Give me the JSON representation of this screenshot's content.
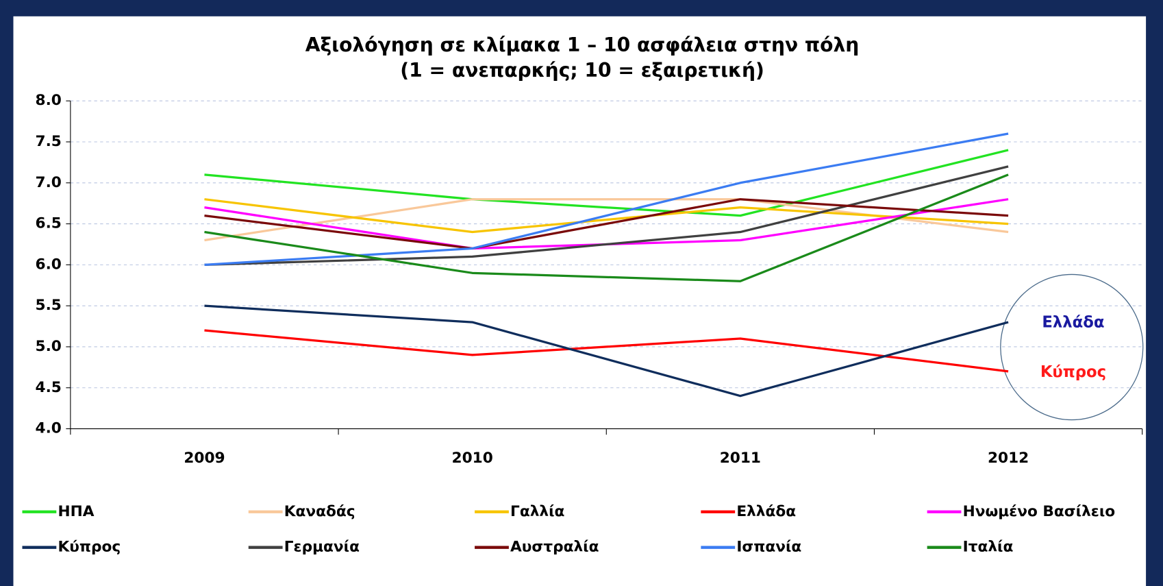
{
  "chart_data": {
    "type": "line",
    "title": "Αξιολόγηση σε κλίμακα 1 – 10 ασφάλεια στην πόλη",
    "subtitle": "(1 = ανεπαρκής; 10 = εξαιρετική)",
    "categories": [
      "2009",
      "2010",
      "2011",
      "2012"
    ],
    "ylim": [
      4,
      8
    ],
    "yticks": [
      {
        "value": 4,
        "label": "4.0"
      },
      {
        "value": 4.5,
        "label": "4.5"
      },
      {
        "value": 5,
        "label": "5.0"
      },
      {
        "value": 5.5,
        "label": "5.5"
      },
      {
        "value": 6,
        "label": "6.0"
      },
      {
        "value": 6.5,
        "label": "6.5"
      },
      {
        "value": 7,
        "label": "7.0"
      },
      {
        "value": 7.5,
        "label": "7.5"
      },
      {
        "value": 8,
        "label": "8.0"
      }
    ],
    "grid": true,
    "legend": "bottom",
    "series": [
      {
        "name": "ΗΠΑ",
        "color": "#22e322",
        "values": [
          7.1,
          6.8,
          6.6,
          7.4
        ]
      },
      {
        "name": "Καναδάς",
        "color": "#f9c89a",
        "values": [
          6.3,
          6.8,
          6.8,
          6.4
        ]
      },
      {
        "name": "Γαλλία",
        "color": "#f7c400",
        "values": [
          6.8,
          6.4,
          6.7,
          6.5
        ]
      },
      {
        "name": "Ελλάδα",
        "color": "#ff0000",
        "values": [
          5.2,
          4.9,
          5.1,
          4.7
        ]
      },
      {
        "name": "Ηνωμένο Βασίλειο",
        "color": "#ff00ff",
        "values": [
          6.7,
          6.2,
          6.3,
          6.8
        ]
      },
      {
        "name": "Κύπρος",
        "color": "#0f2d5c",
        "values": [
          5.5,
          5.3,
          4.4,
          5.3
        ]
      },
      {
        "name": "Γερμανία",
        "color": "#404040",
        "values": [
          6.0,
          6.1,
          6.4,
          7.2
        ]
      },
      {
        "name": "Αυστραλία",
        "color": "#7a0a0a",
        "values": [
          6.6,
          6.2,
          6.8,
          6.6
        ]
      },
      {
        "name": "Ισπανία",
        "color": "#3b7cf2",
        "values": [
          6.0,
          6.2,
          7.0,
          7.6
        ]
      },
      {
        "name": "Ιταλία",
        "color": "#1a8a1a",
        "values": [
          6.4,
          5.9,
          5.8,
          7.1
        ]
      }
    ],
    "annotations": [
      {
        "text": "Ελλάδα",
        "color": "#1a1aa0"
      },
      {
        "text": "Κύπρος",
        "color": "#ff1a1a"
      }
    ]
  }
}
